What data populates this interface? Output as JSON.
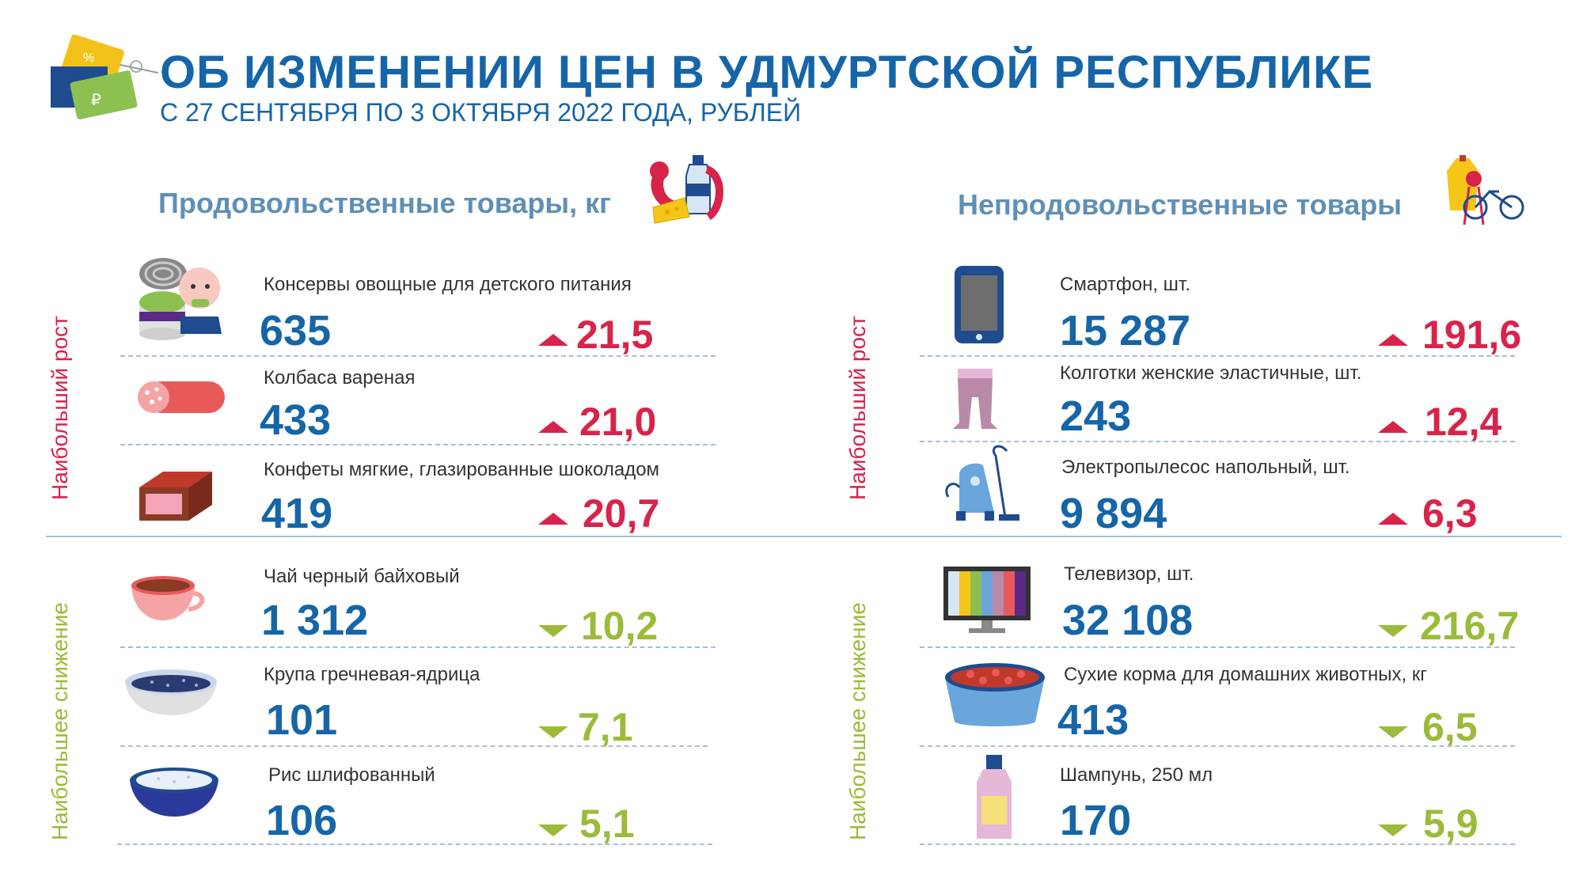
{
  "header": {
    "title": "ОБ ИЗМЕНЕНИИ ЦЕН В УДМУРТСКОЙ РЕСПУБЛИКЕ",
    "subtitle": "С 27 СЕНТЯБРЯ ПО 3 ОКТЯБРЯ 2022 ГОДА, РУБЛЕЙ"
  },
  "colors": {
    "title": "#1565a8",
    "section": "#5f8fb6",
    "up": "#d8234a",
    "down": "#9bbb3a",
    "divider": "#a9bdd0"
  },
  "food": {
    "heading": "Продовольственные товары, кг",
    "rise_label": "Наибольший рост",
    "drop_label": "Наибольшее снижение",
    "items": [
      {
        "name": "Консервы овощные для детского питания",
        "price": "635",
        "change": "21,5",
        "direction": "up",
        "icon": "baby-food-can-icon"
      },
      {
        "name": "Колбаса вареная",
        "price": "433",
        "change": "21,0",
        "direction": "up",
        "icon": "sausage-icon"
      },
      {
        "name": "Конфеты мягкие, глазированные шоколадом",
        "price": "419",
        "change": "20,7",
        "direction": "up",
        "icon": "candy-icon"
      },
      {
        "name": "Чай черный байховый",
        "price": "1 312",
        "change": "10,2",
        "direction": "down",
        "icon": "tea-cup-icon"
      },
      {
        "name": "Крупа гречневая-ядрица",
        "price": "101",
        "change": "7,1",
        "direction": "down",
        "icon": "buckwheat-bowl-icon"
      },
      {
        "name": "Рис шлифованный",
        "price": "106",
        "change": "5,1",
        "direction": "down",
        "icon": "rice-bowl-icon"
      }
    ]
  },
  "nonfood": {
    "heading": "Непродовольственные товары",
    "rise_label": "Наибольший рост",
    "drop_label": "Наибольшее снижение",
    "items": [
      {
        "name": "Смартфон, шт.",
        "price": "15 287",
        "change": "191,6",
        "direction": "up",
        "icon": "smartphone-icon"
      },
      {
        "name": "Колготки женские эластичные, шт.",
        "price": "243",
        "change": "12,4",
        "direction": "up",
        "icon": "tights-icon"
      },
      {
        "name": "Электропылесос напольный, шт.",
        "price": "9 894",
        "change": "6,3",
        "direction": "up",
        "icon": "vacuum-cleaner-icon"
      },
      {
        "name": "Телевизор, шт.",
        "price": "32 108",
        "change": "216,7",
        "direction": "down",
        "icon": "tv-icon"
      },
      {
        "name": "Сухие корма для домашних животных,  кг",
        "price": "413",
        "change": "6,5",
        "direction": "down",
        "icon": "pet-food-bowl-icon"
      },
      {
        "name": "Шампунь, 250 мл",
        "price": "170",
        "change": "5,9",
        "direction": "down",
        "icon": "shampoo-bottle-icon"
      }
    ]
  }
}
